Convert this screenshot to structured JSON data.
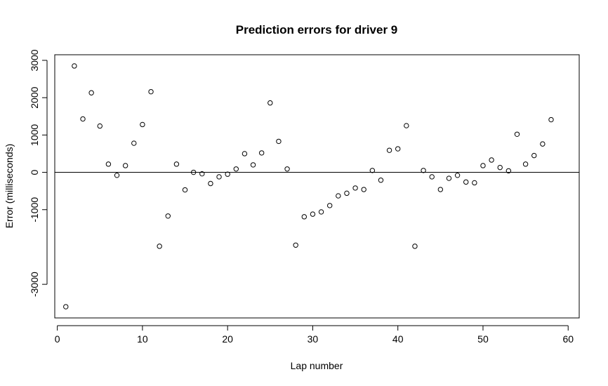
{
  "chart_data": {
    "type": "scatter",
    "title": "Prediction errors for driver 9",
    "xlabel": "Lap number",
    "ylabel": "Error (milliseconds)",
    "xlim": [
      -0.3,
      61.3
    ],
    "ylim": [
      -3900,
      3150
    ],
    "x_ticks": [
      0,
      10,
      20,
      30,
      40,
      50,
      60
    ],
    "x_tick_labels": [
      "0",
      "10",
      "20",
      "30",
      "40",
      "50",
      "60"
    ],
    "y_ticks": [
      -3000,
      -1000,
      0,
      1000,
      2000,
      3000
    ],
    "y_tick_labels": [
      "-3000",
      "-1000",
      "0",
      "1000",
      "2000",
      "3000"
    ],
    "reference_line_y": 0,
    "grid": false,
    "legend": "none",
    "x": [
      1,
      2,
      3,
      4,
      5,
      6,
      7,
      8,
      9,
      10,
      11,
      12,
      13,
      14,
      15,
      16,
      17,
      18,
      19,
      20,
      21,
      22,
      23,
      24,
      25,
      26,
      27,
      28,
      29,
      30,
      31,
      32,
      33,
      34,
      35,
      36,
      37,
      38,
      39,
      40,
      41,
      42,
      43,
      44,
      45,
      46,
      47,
      48,
      49,
      50,
      51,
      52,
      53,
      54,
      55,
      56,
      57,
      58
    ],
    "y": [
      -3600,
      2850,
      1430,
      2130,
      1240,
      220,
      -80,
      180,
      780,
      1280,
      2160,
      -1980,
      -1170,
      220,
      -470,
      0,
      -40,
      -300,
      -120,
      -50,
      90,
      500,
      200,
      520,
      1860,
      830,
      90,
      -1950,
      -1190,
      -1120,
      -1060,
      -890,
      -630,
      -560,
      -420,
      -460,
      50,
      -210,
      590,
      630,
      1250,
      -1980,
      50,
      -120,
      -460,
      -160,
      -80,
      -260,
      -280,
      180,
      330,
      130,
      40,
      1020,
      220,
      450,
      760,
      1410
    ]
  }
}
